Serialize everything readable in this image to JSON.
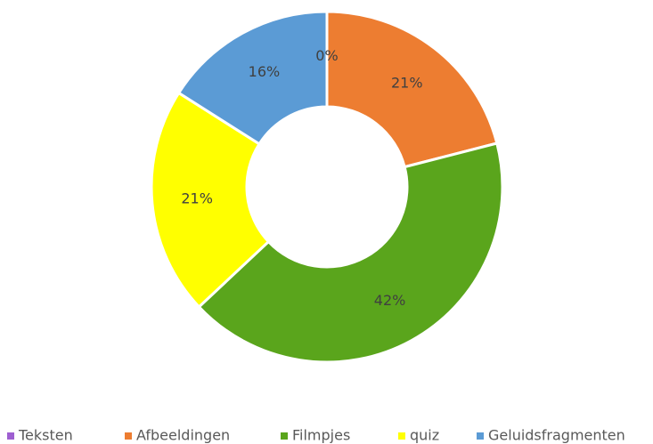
{
  "chart_data": {
    "type": "pie",
    "categories": [
      "Teksten",
      "Afbeeldingen",
      "Filmpjes",
      "quiz",
      "Geluidsfragmenten"
    ],
    "values": [
      0,
      21,
      42,
      21,
      16
    ],
    "value_labels": [
      "0%",
      "21%",
      "42%",
      "21%",
      "16%"
    ],
    "colors": [
      "#9e5fd1",
      "#ed7d31",
      "#5aa51c",
      "#ffff00",
      "#5b9bd5"
    ],
    "donut": true,
    "legend": "bottom"
  }
}
